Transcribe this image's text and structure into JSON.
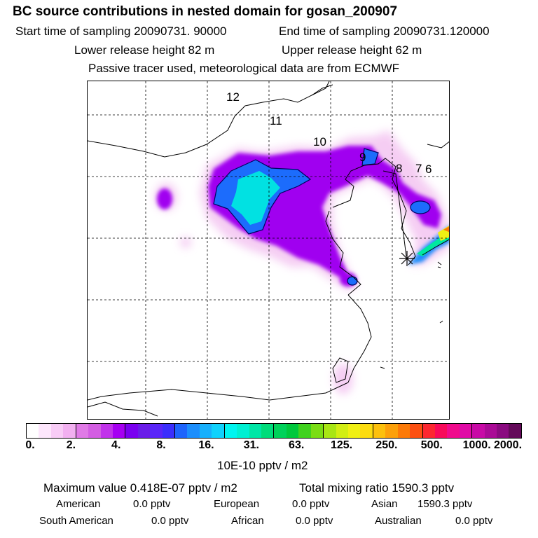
{
  "title": "BC  source contributions in nested domain for gosan_200907",
  "header": {
    "start_label": "Start time of sampling 20090731. 90000",
    "end_label": "End time of sampling 20090731.120000",
    "lower_label": "Lower release height   82 m",
    "upper_label": "Upper release height   62 m",
    "note": "Passive tracer used, meteorological data are from ECMWF"
  },
  "map": {
    "time_labels": [
      "12",
      "11",
      "10",
      "9",
      "8",
      "7",
      "6"
    ],
    "release_marker": "star-marker-icon"
  },
  "colorbar": {
    "ticks": [
      "0.",
      "2.",
      "4.",
      "8.",
      "16.",
      "31.",
      "63.",
      "125.",
      "250.",
      "500.",
      "1000.",
      "2000."
    ],
    "unit": "10E-10 pptv / m2",
    "colors": [
      "#ffffff",
      "#fde6fc",
      "#f8ccf6",
      "#f2b0f0",
      "#e07ae6",
      "#d35ee2",
      "#c133ea",
      "#a600f2",
      "#7a00f0",
      "#6a1ce8",
      "#5a26f8",
      "#3b2efc",
      "#1e64fc",
      "#1c8efc",
      "#18b0fc",
      "#10d2fc",
      "#00f5f0",
      "#00f0d2",
      "#00e6a6",
      "#00dc7a",
      "#00d25a",
      "#00c83c",
      "#40d21e",
      "#7add14",
      "#a8e614",
      "#d2ee14",
      "#f0f014",
      "#fcdc10",
      "#fcc00c",
      "#fca00a",
      "#fc7a08",
      "#fc5012",
      "#fc2830",
      "#f80a5a",
      "#f00a8c",
      "#e00aa6",
      "#c80aa6",
      "#aa0a96",
      "#8a0a80",
      "#640a5a"
    ]
  },
  "footer": {
    "max_value": "Maximum value  0.418E-07 pptv / m2",
    "total_mixing": "Total mixing ratio     1590.3 pptv",
    "regions": [
      {
        "name": "American",
        "value": "0.0 pptv"
      },
      {
        "name": "European",
        "value": "0.0 pptv"
      },
      {
        "name": "Asian",
        "value": "1590.3 pptv"
      },
      {
        "name": "South American",
        "value": "0.0 pptv"
      },
      {
        "name": "African",
        "value": "0.0 pptv"
      },
      {
        "name": "Australian",
        "value": "0.0 pptv"
      }
    ]
  }
}
